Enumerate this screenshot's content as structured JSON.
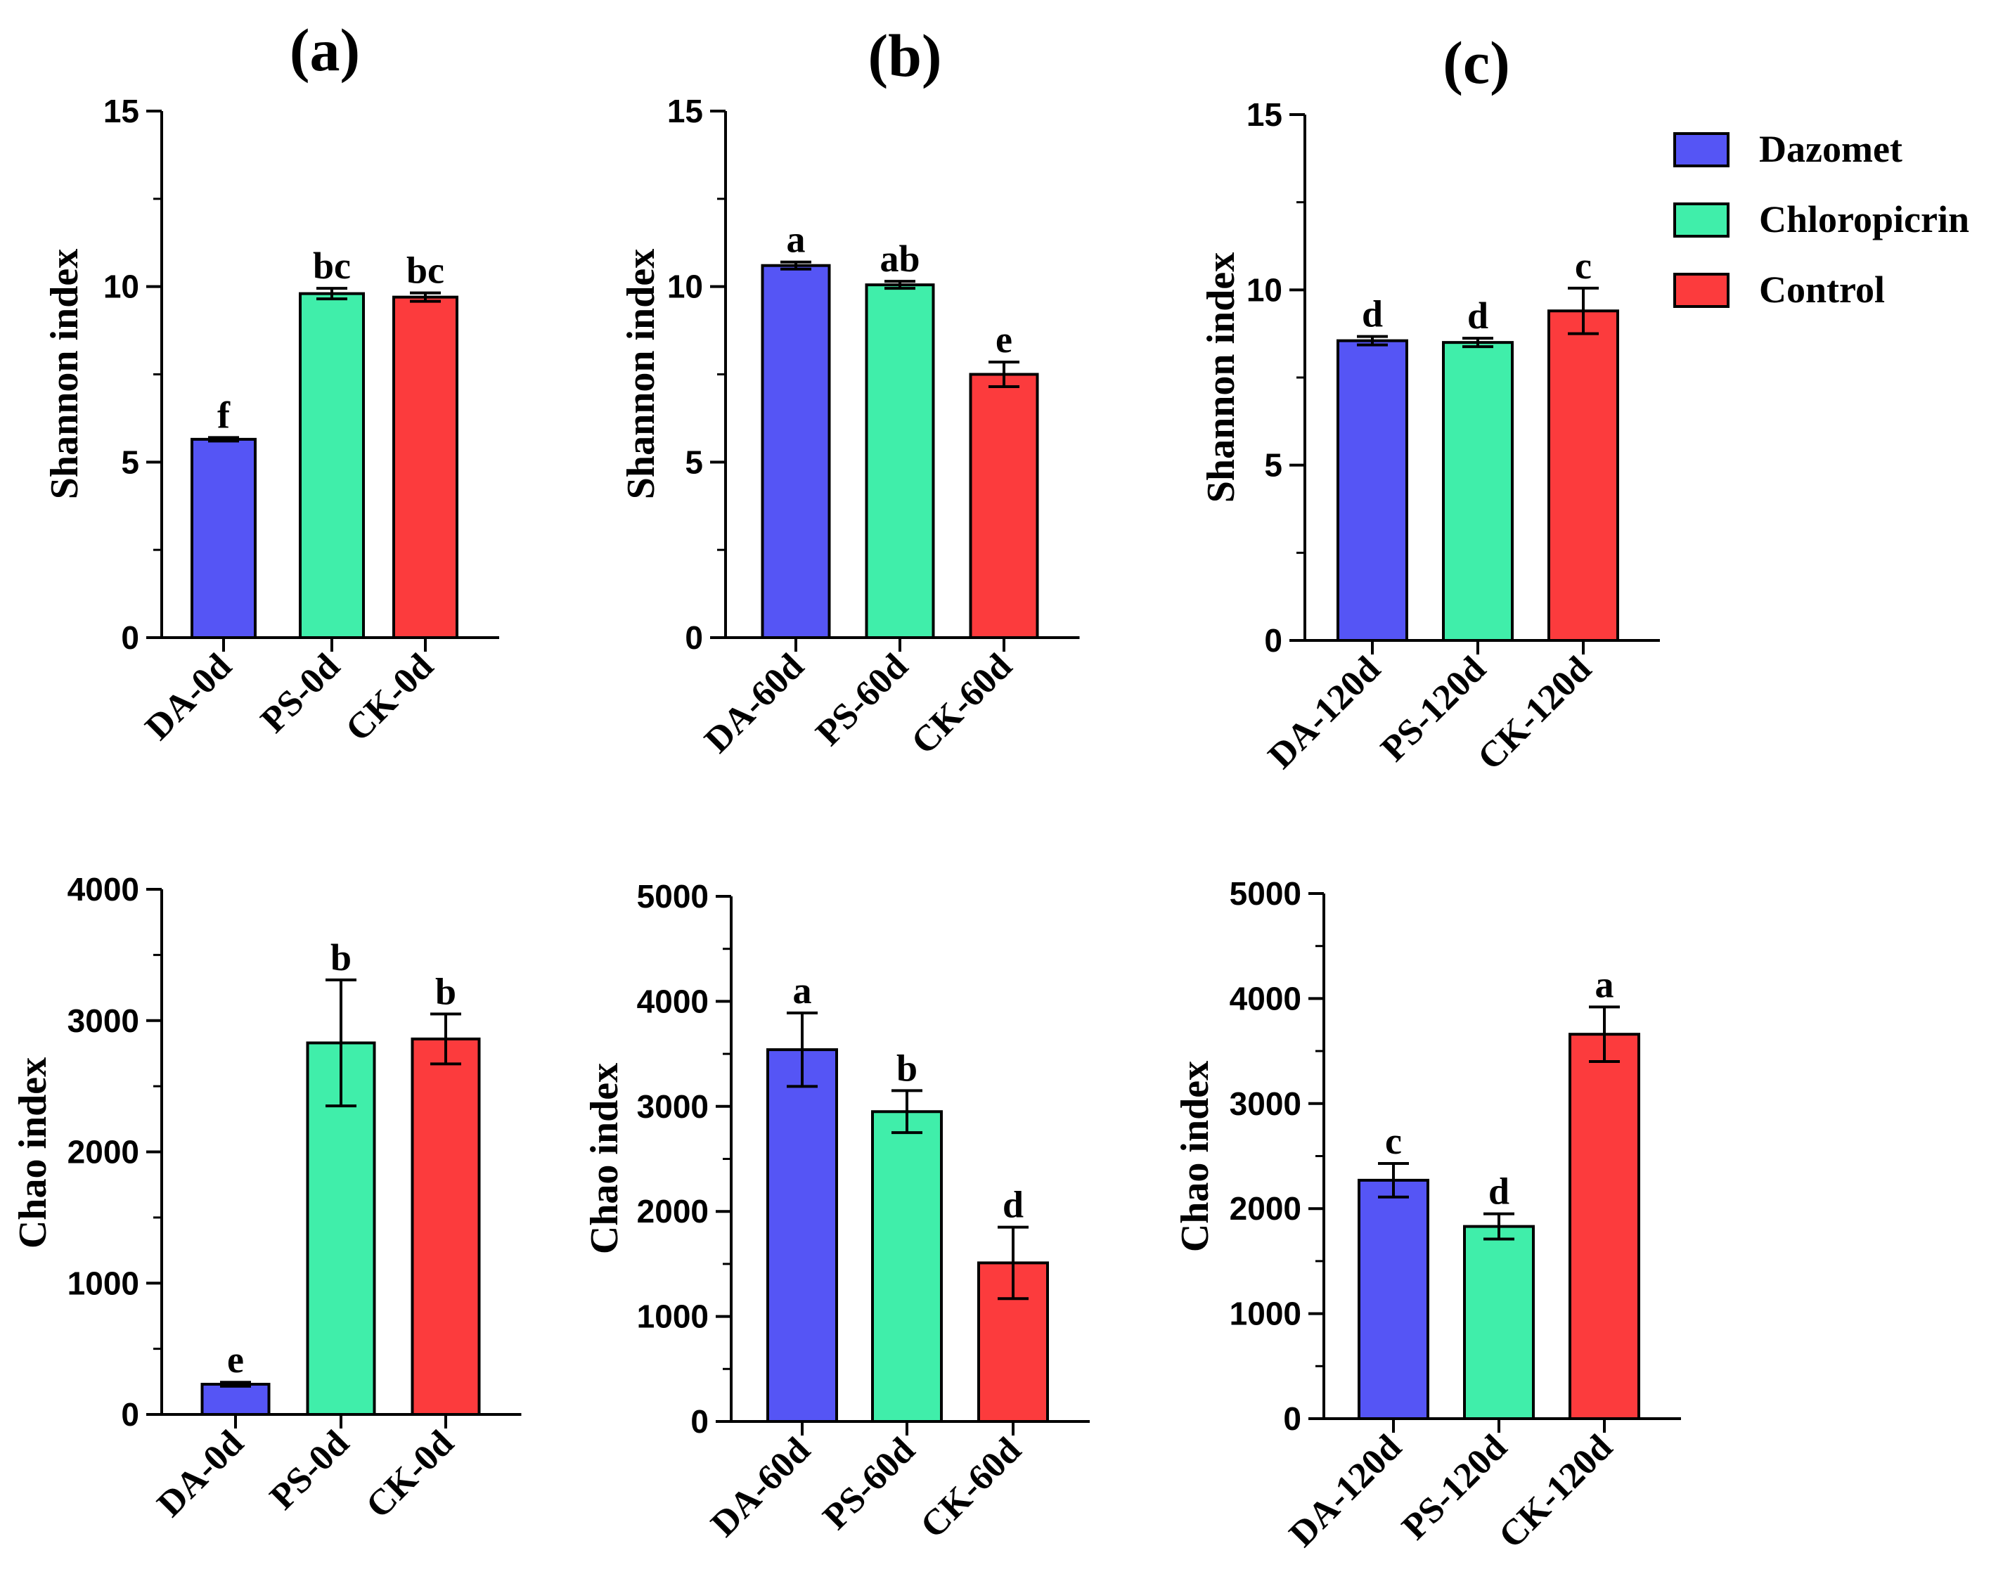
{
  "legend": {
    "entries": [
      {
        "name": "Dazomet",
        "color": "#5555f5"
      },
      {
        "name": "Chloropicrin",
        "color": "#40eeaa"
      },
      {
        "name": "Control",
        "color": "#fc3b3d"
      }
    ]
  },
  "chart_data": [
    {
      "type": "bar",
      "panel_label": "(a)",
      "ylabel": "Shannon index",
      "categories": [
        "DA-0d",
        "PS-0d",
        "CK-0d"
      ],
      "values": [
        5.65,
        9.8,
        9.7
      ],
      "errors": [
        0.05,
        0.15,
        0.12
      ],
      "sig_letters": [
        "f",
        "bc",
        "bc"
      ],
      "ylim": [
        0,
        15
      ],
      "yticks": [
        "0",
        "5",
        "10",
        "15"
      ],
      "minor_step": 2.5
    },
    {
      "type": "bar",
      "panel_label": "(b)",
      "ylabel": "Shannon index",
      "categories": [
        "DA-60d",
        "PS-60d",
        "CK-60d"
      ],
      "values": [
        10.6,
        10.05,
        7.5
      ],
      "errors": [
        0.1,
        0.1,
        0.35
      ],
      "sig_letters": [
        "a",
        "ab",
        "e"
      ],
      "ylim": [
        0,
        15
      ],
      "yticks": [
        "0",
        "5",
        "10",
        "15"
      ],
      "minor_step": 2.5
    },
    {
      "type": "bar",
      "panel_label": "(c)",
      "ylabel": "Shannon index",
      "categories": [
        "DA-120d",
        "PS-120d",
        "CK-120d"
      ],
      "values": [
        8.55,
        8.5,
        9.4
      ],
      "errors": [
        0.12,
        0.12,
        0.65
      ],
      "sig_letters": [
        "d",
        "d",
        "c"
      ],
      "ylim": [
        0,
        15
      ],
      "yticks": [
        "0",
        "5",
        "10",
        "15"
      ],
      "minor_step": 2.5
    },
    {
      "type": "bar",
      "panel_label": "",
      "ylabel": "Chao index",
      "categories": [
        "DA-0d",
        "PS-0d",
        "CK-0d"
      ],
      "values": [
        230,
        2830,
        2860
      ],
      "errors": [
        15,
        480,
        190
      ],
      "sig_letters": [
        "e",
        "b",
        "b"
      ],
      "ylim": [
        0,
        4000
      ],
      "yticks": [
        "0",
        "1000",
        "2000",
        "3000",
        "4000"
      ],
      "minor_step": 500
    },
    {
      "type": "bar",
      "panel_label": "",
      "ylabel": "Chao index",
      "categories": [
        "DA-60d",
        "PS-60d",
        "CK-60d"
      ],
      "values": [
        3540,
        2950,
        1510
      ],
      "errors": [
        350,
        200,
        340
      ],
      "sig_letters": [
        "a",
        "b",
        "d"
      ],
      "ylim": [
        0,
        5000
      ],
      "yticks": [
        "0",
        "1000",
        "2000",
        "3000",
        "4000",
        "5000"
      ],
      "minor_step": 500
    },
    {
      "type": "bar",
      "panel_label": "",
      "ylabel": "Chao index",
      "categories": [
        "DA-120d",
        "PS-120d",
        "CK-120d"
      ],
      "values": [
        2270,
        1830,
        3660
      ],
      "errors": [
        160,
        120,
        260
      ],
      "sig_letters": [
        "c",
        "d",
        "a"
      ],
      "ylim": [
        0,
        5000
      ],
      "yticks": [
        "0",
        "1000",
        "2000",
        "3000",
        "4000",
        "5000"
      ],
      "minor_step": 500
    }
  ]
}
